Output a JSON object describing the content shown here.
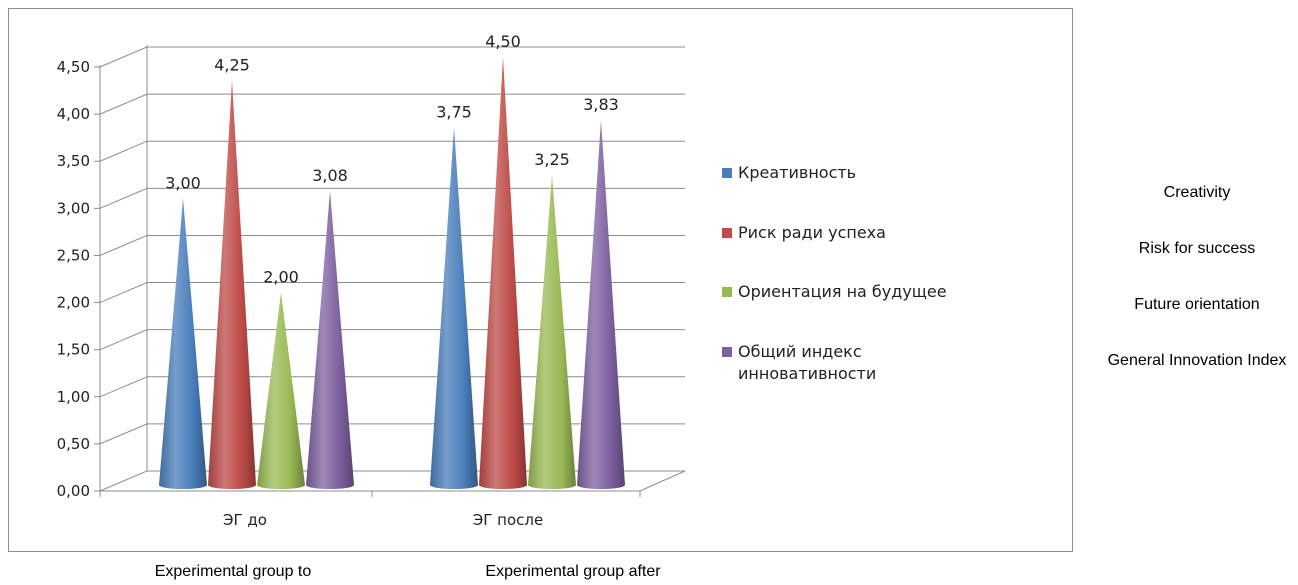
{
  "chart_data": {
    "type": "bar",
    "style": "3d-cone",
    "categories": [
      "ЭГ до",
      "ЭГ после"
    ],
    "series": [
      {
        "name": "Креативность",
        "color": "#4a7ebb",
        "values": [
          3.0,
          3.75
        ],
        "labels": [
          "3,00",
          "3,75"
        ]
      },
      {
        "name": "Риск ради успеха",
        "color": "#be4b48",
        "values": [
          4.25,
          4.5
        ],
        "labels": [
          "4,25",
          "4,50"
        ]
      },
      {
        "name": "Ориентация на будущее",
        "color": "#98b954",
        "values": [
          2.0,
          3.25
        ],
        "labels": [
          "2,00",
          "3,25"
        ]
      },
      {
        "name": "Общий индекс инновативности",
        "name_lines": [
          "Общий индекс",
          "инновативности"
        ],
        "color": "#7d60a0",
        "values": [
          3.08,
          3.83
        ],
        "labels": [
          "3,08",
          "3,83"
        ]
      }
    ],
    "ylim": [
      0,
      4.5
    ],
    "yticks": [
      "0,00",
      "0,50",
      "1,00",
      "1,50",
      "2,00",
      "2,50",
      "3,00",
      "3,50",
      "4,00",
      "4,50"
    ],
    "grid": true,
    "legend": "right"
  },
  "translations": {
    "series": [
      "Creativity",
      "Risk for success",
      "Future orientation",
      "General Innovation Index"
    ],
    "categories": [
      "Experimental group to",
      "Experimental group after"
    ]
  }
}
